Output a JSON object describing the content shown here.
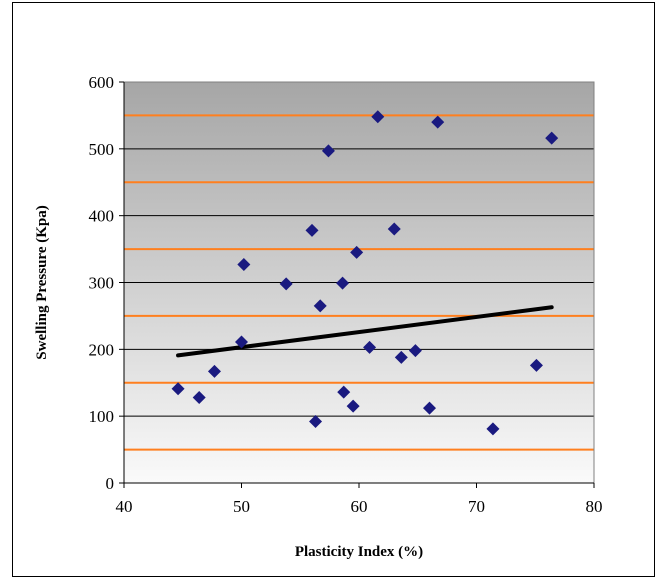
{
  "chart_data": {
    "type": "scatter",
    "title": "",
    "xlabel": "Plasticity Index (%)",
    "ylabel": "Swelling Pressure (Kpa)",
    "xlim": [
      40,
      80
    ],
    "ylim": [
      0,
      600
    ],
    "x_ticks": [
      "40",
      "50",
      "60",
      "70",
      "80"
    ],
    "y_ticks": [
      "0",
      "100",
      "200",
      "300",
      "400",
      "500",
      "600"
    ],
    "grid": "horizontal",
    "legend": "none",
    "points": [
      {
        "x": 44.6,
        "y": 141
      },
      {
        "x": 46.4,
        "y": 128
      },
      {
        "x": 47.7,
        "y": 167
      },
      {
        "x": 50.0,
        "y": 211
      },
      {
        "x": 50.2,
        "y": 327
      },
      {
        "x": 53.8,
        "y": 298
      },
      {
        "x": 56.0,
        "y": 378
      },
      {
        "x": 56.3,
        "y": 92
      },
      {
        "x": 56.7,
        "y": 265
      },
      {
        "x": 57.4,
        "y": 497
      },
      {
        "x": 58.6,
        "y": 299
      },
      {
        "x": 58.7,
        "y": 136
      },
      {
        "x": 59.5,
        "y": 115
      },
      {
        "x": 59.8,
        "y": 345
      },
      {
        "x": 60.9,
        "y": 203
      },
      {
        "x": 61.6,
        "y": 548
      },
      {
        "x": 63.0,
        "y": 380
      },
      {
        "x": 63.6,
        "y": 188
      },
      {
        "x": 64.8,
        "y": 198
      },
      {
        "x": 66.0,
        "y": 112
      },
      {
        "x": 66.7,
        "y": 540
      },
      {
        "x": 71.4,
        "y": 81
      },
      {
        "x": 75.1,
        "y": 176
      },
      {
        "x": 76.4,
        "y": 516
      }
    ],
    "trendline": {
      "x": [
        44.6,
        76.4
      ],
      "y": [
        191,
        263
      ]
    },
    "colors": {
      "marker": "#1a1a80",
      "trendline": "#000000",
      "gridline": "#ff7f1e",
      "plot_bg_top": "#a6a6a6",
      "plot_bg_bottom": "#fafafa"
    }
  }
}
